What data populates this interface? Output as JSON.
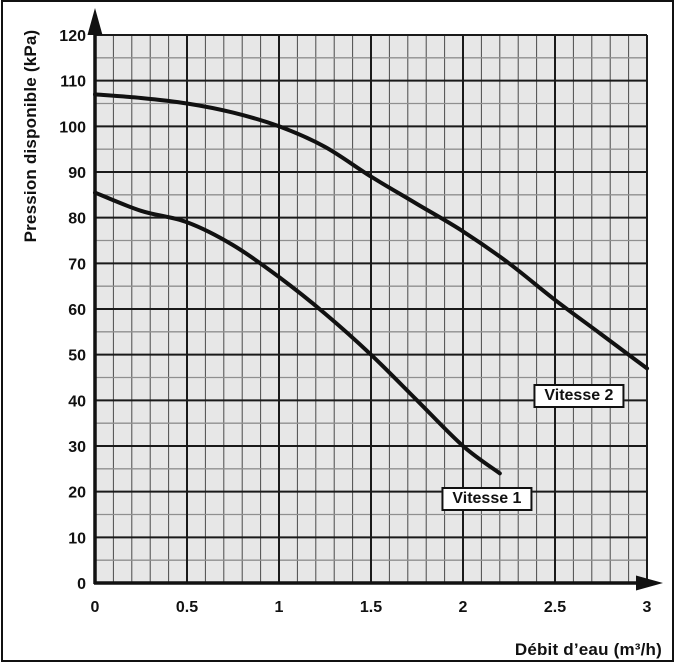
{
  "chart_data": {
    "type": "line",
    "title": "",
    "xlabel": "Débit d’eau (m³/h)",
    "ylabel": "Pression disponible (kPa)",
    "xlim": [
      0,
      3
    ],
    "ylim": [
      0,
      120
    ],
    "x_major_step": 0.5,
    "x_minor_step": 0.1,
    "y_major_step": 10,
    "y_minor_step": 5,
    "grid": true,
    "x_ticks": [
      {
        "value": 0,
        "label": "0"
      },
      {
        "value": 0.5,
        "label": "0.5"
      },
      {
        "value": 1,
        "label": "1"
      },
      {
        "value": 1.5,
        "label": "1.5"
      },
      {
        "value": 2,
        "label": "2"
      },
      {
        "value": 2.5,
        "label": "2.5"
      },
      {
        "value": 3,
        "label": "3"
      }
    ],
    "y_ticks": [
      {
        "value": 0,
        "label": "0"
      },
      {
        "value": 10,
        "label": "10"
      },
      {
        "value": 20,
        "label": "20"
      },
      {
        "value": 30,
        "label": "30"
      },
      {
        "value": 40,
        "label": "40"
      },
      {
        "value": 50,
        "label": "50"
      },
      {
        "value": 60,
        "label": "60"
      },
      {
        "value": 70,
        "label": "70"
      },
      {
        "value": 80,
        "label": "80"
      },
      {
        "value": 90,
        "label": "90"
      },
      {
        "value": 100,
        "label": "100"
      },
      {
        "value": 110,
        "label": "110"
      },
      {
        "value": 120,
        "label": "120"
      }
    ],
    "series": [
      {
        "name": "Vitesse 1",
        "x": [
          0,
          0.25,
          0.5,
          0.75,
          1.0,
          1.25,
          1.5,
          1.75,
          2.0,
          2.2
        ],
        "y": [
          85.5,
          81.5,
          79,
          74,
          67,
          59,
          50,
          40,
          30,
          24
        ]
      },
      {
        "name": "Vitesse 2",
        "x": [
          0,
          0.25,
          0.5,
          0.75,
          1.0,
          1.25,
          1.5,
          1.75,
          2.0,
          2.25,
          2.5,
          2.75,
          3.0
        ],
        "y": [
          107,
          106.2,
          105,
          103,
          100,
          95.5,
          89,
          83,
          77,
          70,
          62,
          54.5,
          47
        ]
      }
    ],
    "annotations": [
      {
        "label": "Vitesse 1",
        "x": 2.13,
        "y": 18.5
      },
      {
        "label": "Vitesse 2",
        "x": 2.63,
        "y": 41.0
      }
    ],
    "colors": {
      "curve": "#111111",
      "plot_background": "#e7e7e7",
      "major_grid": "#1a1a1a",
      "minor_grid_horizontal": "#8f8f8f",
      "minor_grid_vertical": "#4a4a4a",
      "axis": "#111111",
      "frame": "#111111"
    }
  }
}
